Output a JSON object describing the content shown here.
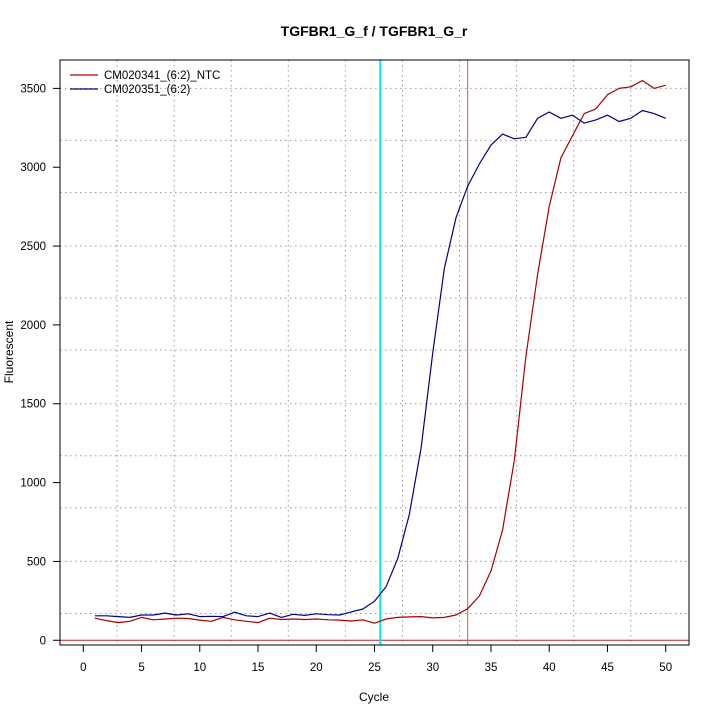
{
  "chart_data": {
    "type": "line",
    "title": "TGFBR1_G_f / TGFBR1_G_r",
    "xlabel": "Cycle",
    "ylabel": "Fluorescent",
    "xlim": [
      -2,
      52
    ],
    "ylim": [
      -30,
      3680
    ],
    "xticks": [
      0,
      5,
      10,
      15,
      20,
      25,
      30,
      35,
      40,
      45,
      50
    ],
    "yticks": [
      0,
      500,
      1000,
      1500,
      2000,
      2500,
      3000,
      3500
    ],
    "grid": true,
    "vgrid": [
      2.9,
      7.8,
      12.7,
      17.6,
      22.5,
      27.4,
      32.3,
      37.2,
      42.1,
      47.0
    ],
    "hgrid": [
      170,
      500,
      840,
      1170,
      1500,
      1840,
      2170,
      2500,
      2840,
      3170,
      3500
    ],
    "legend_position": "top-left",
    "threshold_cycle": 25.5,
    "ct_cycle": 33.0,
    "baseline": 0,
    "colors": {
      "threshold": "#00e5ee",
      "ct": "#cd5c5c",
      "baseline": "#b22222",
      "grid": "#999999"
    },
    "series": [
      {
        "name": "CM020341_(6:2)_NTC",
        "color": "#aa0000",
        "x": [
          1,
          2,
          3,
          4,
          5,
          6,
          7,
          8,
          9,
          10,
          11,
          12,
          13,
          14,
          15,
          16,
          17,
          18,
          19,
          20,
          21,
          22,
          23,
          24,
          25,
          26,
          27,
          28,
          29,
          30,
          31,
          32,
          33,
          34,
          35,
          36,
          37,
          38,
          39,
          40,
          41,
          42,
          43,
          44,
          45,
          46,
          47,
          48,
          49,
          50
        ],
        "values": [
          140,
          125,
          112,
          120,
          145,
          130,
          135,
          140,
          138,
          128,
          120,
          145,
          130,
          120,
          112,
          140,
          132,
          135,
          132,
          135,
          130,
          128,
          122,
          130,
          108,
          135,
          145,
          148,
          150,
          142,
          145,
          160,
          200,
          280,
          440,
          700,
          1140,
          1800,
          2320,
          2750,
          3060,
          3200,
          3340,
          3370,
          3460,
          3500,
          3510,
          3550,
          3500,
          3520
        ]
      },
      {
        "name": "CM020351_(6:2)",
        "color": "#000088",
        "x": [
          1,
          2,
          3,
          4,
          5,
          6,
          7,
          8,
          9,
          10,
          11,
          12,
          13,
          14,
          15,
          16,
          17,
          18,
          19,
          20,
          21,
          22,
          23,
          24,
          25,
          26,
          27,
          28,
          29,
          30,
          31,
          32,
          33,
          34,
          35,
          36,
          37,
          38,
          39,
          40,
          41,
          42,
          43,
          44,
          45,
          46,
          47,
          48,
          49,
          50
        ],
        "values": [
          155,
          155,
          150,
          145,
          160,
          160,
          172,
          160,
          168,
          150,
          152,
          150,
          178,
          155,
          150,
          172,
          145,
          165,
          158,
          168,
          162,
          160,
          180,
          198,
          248,
          340,
          520,
          800,
          1220,
          1820,
          2360,
          2680,
          2880,
          3020,
          3140,
          3210,
          3180,
          3190,
          3310,
          3350,
          3310,
          3330,
          3280,
          3300,
          3330,
          3290,
          3310,
          3360,
          3340,
          3310
        ]
      }
    ]
  }
}
